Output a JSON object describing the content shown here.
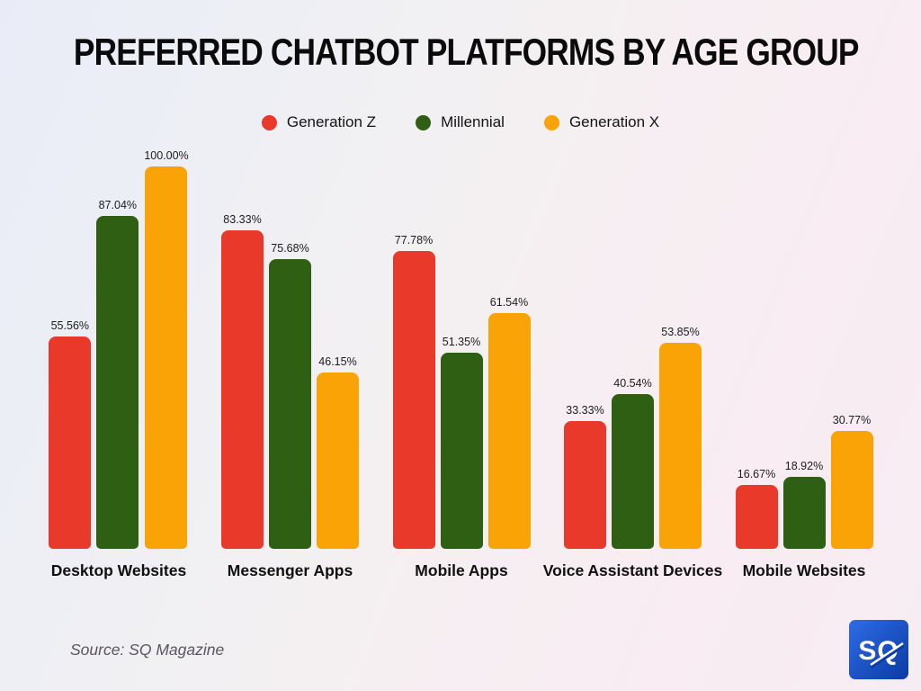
{
  "title": "PREFERRED CHATBOT PLATFORMS BY AGE GROUP",
  "source": "Source: SQ Magazine",
  "logo": {
    "text": "SQ",
    "color_top": "#2e6ce5",
    "color_bottom": "#0b3ba5"
  },
  "chart_data": {
    "type": "bar",
    "title": "PREFERRED CHATBOT PLATFORMS BY AGE GROUP",
    "categories": [
      "Desktop Websites",
      "Messenger Apps",
      "Mobile Apps",
      "Voice Assistant Devices",
      "Mobile Websites"
    ],
    "series": [
      {
        "name": "Generation Z",
        "color": "#e8392b",
        "values": [
          55.56,
          83.33,
          77.78,
          33.33,
          16.67
        ]
      },
      {
        "name": "Millennial",
        "color": "#2f5f13",
        "values": [
          87.04,
          75.68,
          51.35,
          40.54,
          18.92
        ]
      },
      {
        "name": "Generation X",
        "color": "#f9a306",
        "values": [
          100.0,
          46.15,
          61.54,
          53.85,
          30.77
        ]
      }
    ],
    "value_label_format": "percent_two_decimals",
    "value_suffix": "%",
    "ylim": [
      0,
      100
    ],
    "grid": false,
    "axis_lines": false,
    "legend_position": "top"
  }
}
